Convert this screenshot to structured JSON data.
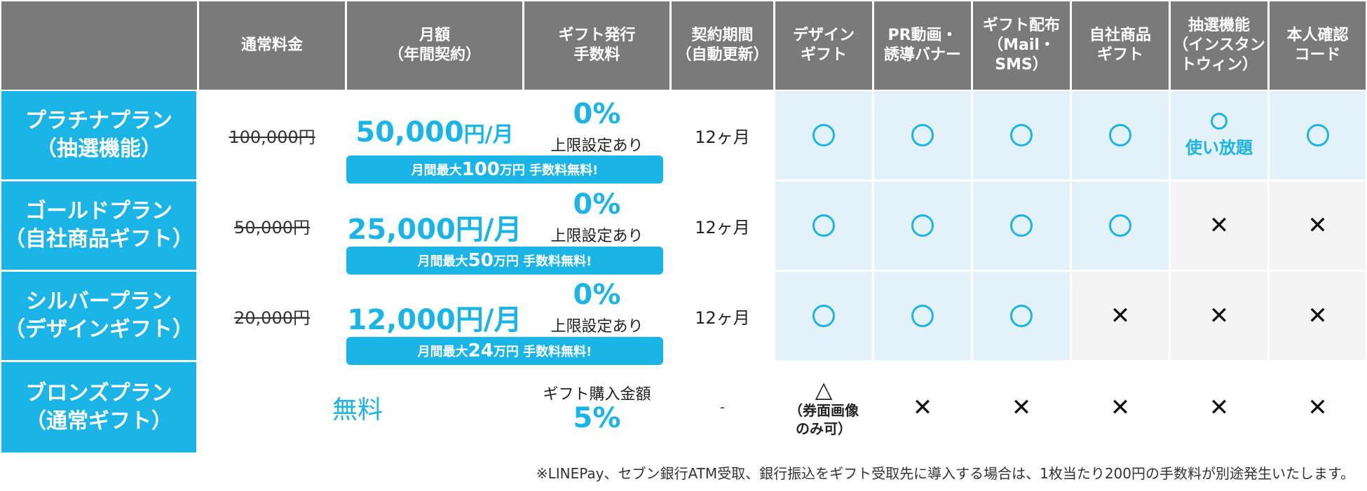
{
  "headers": {
    "regular_fee": "通常料金",
    "monthly": "月額\n（年間契約）",
    "gift_fee": "ギフト発行\n手数料",
    "contract": "契約期間\n（自動更新）",
    "design_gift": "デザイン\nギフト",
    "pr_video": "PR動画・\n誘導バナー",
    "gift_delivery": "ギフト配布\n（Mail・\nSMS）",
    "own_product": "自社商品\nギフト",
    "lottery": "抽選機能\n（インスタン\nトウィン）",
    "id_code": "本人確認\nコード"
  },
  "plans": [
    {
      "name": "プラチナプラン\n（抽選機能）",
      "regular": "100,000円",
      "monthly_num": "50,000",
      "monthly_unit": "円/月",
      "fee_pct": "0%",
      "fee_note": "上限設定あり",
      "banner_pre": "月間最大",
      "banner_num": "100",
      "banner_post": "万円 手数料無料!",
      "term": "12ヶ月",
      "features": [
        "o",
        "o",
        "o",
        "o",
        "o-unlimited",
        "o"
      ],
      "unlimited_label": "使い放題"
    },
    {
      "name": "ゴールドプラン\n（自社商品ギフト）",
      "regular": "50,000円",
      "monthly_num": "25,000",
      "monthly_unit": "円/月",
      "fee_pct": "0%",
      "fee_note": "上限設定あり",
      "banner_pre": "月間最大",
      "banner_num": "50",
      "banner_post": "万円 手数料無料!",
      "term": "12ヶ月",
      "features": [
        "o",
        "o",
        "o",
        "o",
        "x",
        "x"
      ]
    },
    {
      "name": "シルバープラン\n（デザインギフト）",
      "regular": "20,000円",
      "monthly_num": "12,000",
      "monthly_unit": "円/月",
      "fee_pct": "0%",
      "fee_note": "上限設定あり",
      "banner_pre": "月間最大",
      "banner_num": "24",
      "banner_post": "万円 手数料無料!",
      "term": "12ヶ月",
      "features": [
        "o",
        "o",
        "o",
        "x",
        "x",
        "x"
      ]
    },
    {
      "name": "ブロンズプラン\n（通常ギフト）",
      "monthly_free": "無料",
      "fee_label": "ギフト購入金額",
      "fee_pct": "5%",
      "term": "-",
      "design_mark": "△",
      "design_note": "（券面画像\nのみ可）",
      "features": [
        "triangle",
        "x",
        "x",
        "x",
        "x",
        "x"
      ]
    }
  ],
  "symbols": {
    "x": "✕"
  },
  "footnote": "※LINEPay、セブン銀行ATM受取、銀行振込をギフト受取先に導入する場合は、1枚当たり200円の手数料が別途発生いたします。",
  "colors": {
    "accent": "#1bb4e6",
    "header_bg": "#7a7a7a",
    "feature_blue": "#e3f2f8",
    "feature_grey": "#f5f4f4"
  }
}
